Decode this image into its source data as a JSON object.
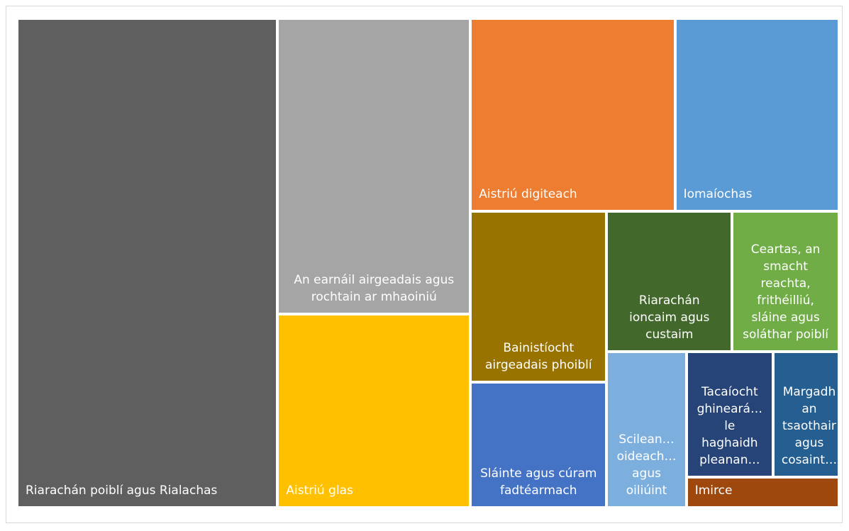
{
  "chart_data": {
    "type": "treemap",
    "categories": [
      "Riarachán poiblí agus Rialachas",
      "An earnáil airgeadais agus rochtain ar mhaoiniú",
      "Aistriú glas",
      "Aistriú digiteach",
      "Iomaíochas",
      "Bainistíocht airgeadais phoiblí",
      "Sláinte agus cúram fadtéarmach",
      "Riarachán ioncaim agus custaim",
      "Ceartas, an smacht reachta, frithéilliú, sláine agus soláthar poiblí",
      "Scilean… oideach… agus oiliúint",
      "Tacaíocht ghineará… le haghaidh pleanan…",
      "Margadh an tsaothair agus cosaint…",
      "Imirce"
    ],
    "values": [
      246,
      110,
      72,
      76,
      61,
      45,
      33,
      34,
      29,
      24,
      21,
      16,
      9
    ],
    "colors": [
      "#5f5f5f",
      "#a5a5a5",
      "#ffc000",
      "#ed7d31",
      "#5b9bd5",
      "#997300",
      "#4472c4",
      "#43682b",
      "#70ad47",
      "#7cafdd",
      "#264478",
      "#255e91",
      "#9e480e"
    ]
  }
}
